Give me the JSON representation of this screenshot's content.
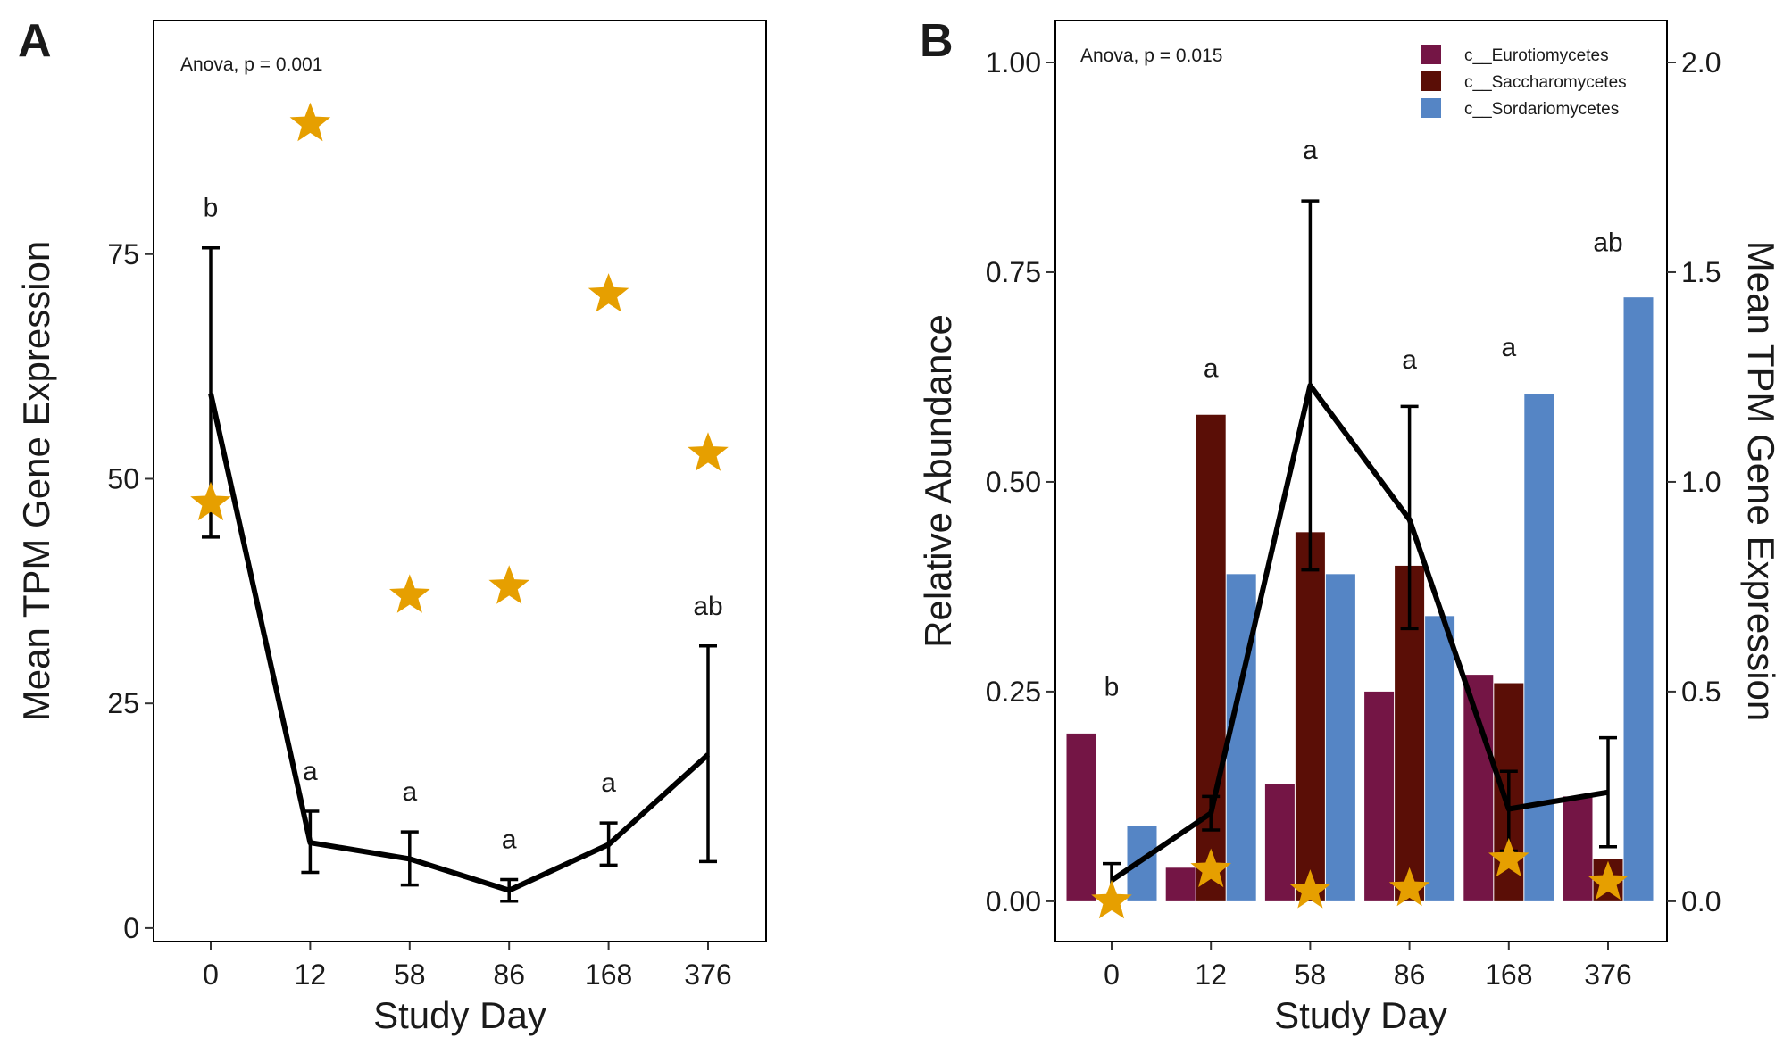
{
  "colors": {
    "star": "#E69F00",
    "line": "#000000",
    "eurotiomycetes": "#741545",
    "saccharomycetes": "#5A0E06",
    "sordariomycetes": "#5585C5"
  },
  "chart_data": [
    {
      "type": "line",
      "panel": "A",
      "annotation": "Anova, p = 0.001",
      "xlabel": "Study Day",
      "ylabel": "Mean TPM Gene Expression",
      "categories": [
        "0",
        "12",
        "58",
        "86",
        "168",
        "376"
      ],
      "ylim": [
        -1.5,
        101
      ],
      "yticks": [
        0,
        25,
        50,
        75
      ],
      "grid": false,
      "series": [
        {
          "role": "line",
          "values": [
            59.5,
            9.5,
            7.7,
            4.2,
            9.3,
            19.3
          ],
          "error_low": [
            43.5,
            6.2,
            4.8,
            3.0,
            7.0,
            7.4
          ],
          "error_high": [
            75.7,
            13.0,
            10.7,
            5.4,
            11.7,
            31.4
          ]
        },
        {
          "role": "stars",
          "values": [
            47.3,
            89.5,
            37.0,
            38.0,
            70.5,
            52.8
          ]
        }
      ],
      "significance_letters": [
        "b",
        "a",
        "a",
        "a",
        "a",
        "ab"
      ]
    },
    {
      "type": "bar",
      "panel": "B",
      "annotation": "Anova, p = 0.015",
      "xlabel": "Study Day",
      "ylabel": "Relative Abundance",
      "y2label": "Mean TPM Gene Expression",
      "categories": [
        "0",
        "12",
        "58",
        "86",
        "168",
        "376"
      ],
      "ylim": [
        -0.048,
        1.05
      ],
      "yticks": [
        0.0,
        0.25,
        0.5,
        0.75,
        1.0
      ],
      "ytick_labels": [
        "0.00",
        "0.25",
        "0.50",
        "0.75",
        "1.00"
      ],
      "y2lim": [
        -0.096,
        2.1
      ],
      "y2ticks": [
        0.0,
        0.5,
        1.0,
        1.5,
        2.0
      ],
      "y2tick_labels": [
        "0.0",
        "0.5",
        "1.0",
        "1.5",
        "2.0"
      ],
      "grid": false,
      "legend_position": "top-right",
      "series": [
        {
          "name": "c__Eurotiomycetes",
          "values": [
            0.2,
            0.04,
            0.14,
            0.25,
            0.27,
            0.125
          ]
        },
        {
          "name": "c__Saccharomycetes",
          "values": [
            0.0,
            0.58,
            0.44,
            0.4,
            0.26,
            0.05
          ]
        },
        {
          "name": "c__Sordariomycetes",
          "values": [
            0.09,
            0.39,
            0.39,
            0.34,
            0.605,
            0.72
          ]
        }
      ],
      "line_series": {
        "axis": "y2",
        "values": [
          0.05,
          0.21,
          1.23,
          0.91,
          0.22,
          0.26
        ],
        "error_low": [
          0.0,
          0.17,
          0.79,
          0.65,
          0.12,
          0.13
        ],
        "error_high": [
          0.09,
          0.25,
          1.67,
          1.18,
          0.31,
          0.39
        ]
      },
      "stars": {
        "axis": "y2",
        "values": [
          0.0,
          0.075,
          0.025,
          0.03,
          0.1,
          0.045
        ]
      },
      "significance_letters": [
        "b",
        "a",
        "a",
        "a",
        "a",
        "ab"
      ],
      "significance_y2": [
        0.49,
        1.25,
        1.77,
        1.27,
        1.3,
        1.55
      ]
    }
  ]
}
